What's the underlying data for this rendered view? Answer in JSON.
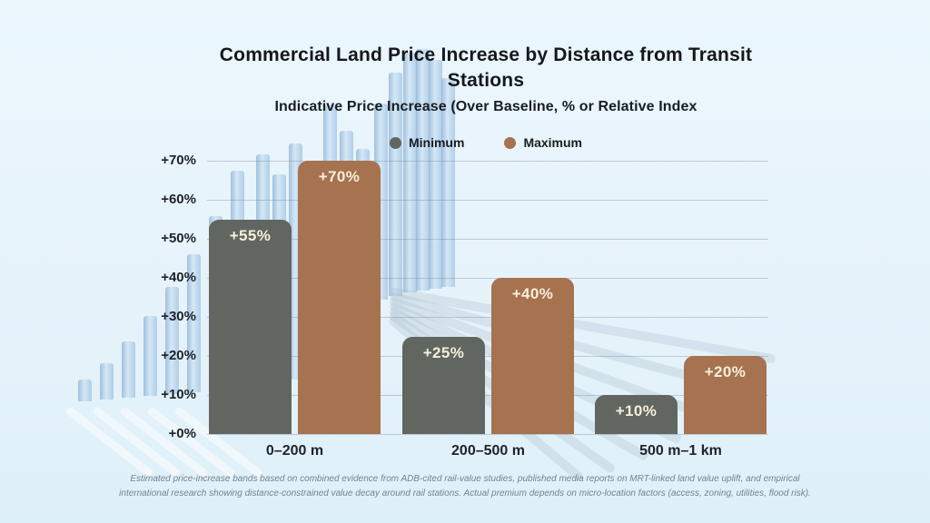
{
  "chart_data": {
    "type": "bar",
    "title": "Commercial Land Price Increase by Distance from Transit Stations",
    "subtitle": "Indicative Price Increase (Over Baseline, % or Relative Index",
    "categories": [
      "0–200 m",
      "200–500 m",
      "500 m–1 km"
    ],
    "series": [
      {
        "name": "Minimum",
        "color": "#616660",
        "values": [
          55,
          25,
          10
        ],
        "labels": [
          "+55%",
          "+25%",
          "+10%"
        ]
      },
      {
        "name": "Maximum",
        "color": "#a6724f",
        "values": [
          70,
          40,
          20
        ],
        "labels": [
          "+70%",
          "+40%",
          "+20%"
        ]
      }
    ],
    "yticks": [
      0,
      10,
      20,
      30,
      40,
      50,
      60,
      70
    ],
    "ytick_labels": [
      "+0%",
      "+10%",
      "+20%",
      "+30%",
      "+40%",
      "+50%",
      "+60%",
      "+70%"
    ],
    "ylim": [
      0,
      70
    ],
    "grid": true,
    "legend_position": "top-center",
    "value_label_color": "#f6efdc"
  },
  "footnote": {
    "lines": [
      "Estimated price-increase bands based on combined evidence from ADB-cited rail-value studies, published media reports on MRT-linked land value uplift, and empirical",
      "international research showing distance-constrained value decay around rail stations. Actual premium depends on micro-location factors (access, zoning, utilities, flood risk)."
    ]
  },
  "colors": {
    "background": "#e7f3fb",
    "grid_line": "#8c9aa6",
    "axis_text": "#1d2329",
    "decor_bar": "#bdd7ee"
  }
}
